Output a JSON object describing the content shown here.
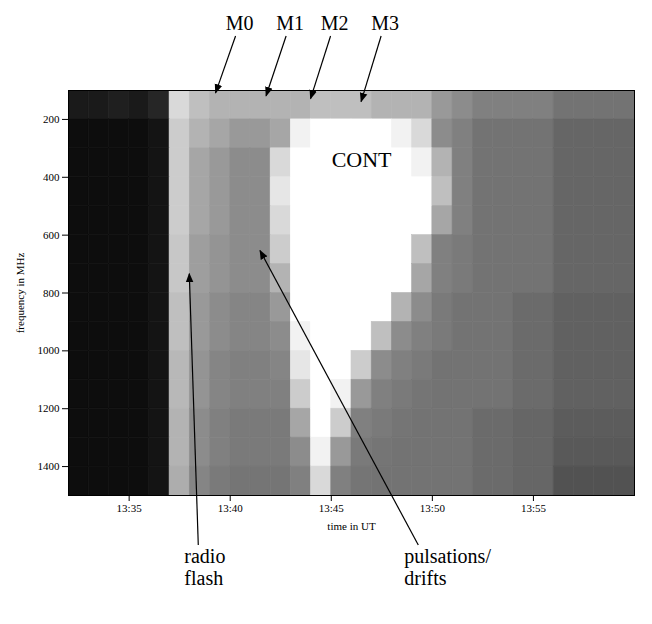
{
  "chart_data": {
    "type": "heatmap",
    "x_label": "time in UT",
    "y_label": "frequency in MHz",
    "xlim": [
      812,
      840
    ],
    "ylim": [
      100,
      1500
    ],
    "xticks": [
      {
        "value": 815,
        "label": "13:35"
      },
      {
        "value": 820,
        "label": "13:40"
      },
      {
        "value": 825,
        "label": "13:45"
      },
      {
        "value": 830,
        "label": "13:50"
      },
      {
        "value": 835,
        "label": "13:55"
      }
    ],
    "yticks": [
      200,
      400,
      600,
      800,
      1000,
      1200,
      1400
    ],
    "zlim": [
      0,
      1
    ],
    "x_bins": [
      812,
      813,
      814,
      815,
      816,
      817,
      818,
      819,
      820,
      821,
      822,
      823,
      824,
      825,
      826,
      827,
      828,
      829,
      830,
      831,
      832,
      833,
      834,
      835,
      836,
      837,
      838,
      839,
      840
    ],
    "y_bins": [
      100,
      200,
      300,
      400,
      500,
      600,
      700,
      800,
      900,
      1000,
      1100,
      1200,
      1300,
      1400,
      1500
    ],
    "cells": [
      [
        0.1,
        0.1,
        0.12,
        0.1,
        0.15,
        0.85,
        0.75,
        0.7,
        0.7,
        0.7,
        0.7,
        0.7,
        0.75,
        0.75,
        0.75,
        0.7,
        0.7,
        0.7,
        0.6,
        0.55,
        0.5,
        0.5,
        0.5,
        0.5,
        0.45,
        0.45,
        0.45,
        0.45
      ],
      [
        0.05,
        0.05,
        0.05,
        0.05,
        0.08,
        0.8,
        0.7,
        0.65,
        0.6,
        0.6,
        0.65,
        0.95,
        1,
        1,
        1,
        1,
        0.95,
        0.85,
        0.55,
        0.5,
        0.45,
        0.45,
        0.45,
        0.45,
        0.4,
        0.4,
        0.4,
        0.4
      ],
      [
        0.05,
        0.05,
        0.05,
        0.05,
        0.08,
        0.8,
        0.65,
        0.6,
        0.55,
        0.55,
        0.85,
        1,
        1,
        1,
        1,
        1,
        1,
        0.95,
        0.7,
        0.5,
        0.45,
        0.45,
        0.45,
        0.45,
        0.4,
        0.4,
        0.4,
        0.4
      ],
      [
        0.05,
        0.05,
        0.05,
        0.05,
        0.08,
        0.8,
        0.65,
        0.6,
        0.55,
        0.55,
        0.9,
        1,
        1,
        1,
        1,
        1,
        1,
        1,
        0.75,
        0.5,
        0.45,
        0.45,
        0.45,
        0.45,
        0.4,
        0.4,
        0.4,
        0.4
      ],
      [
        0.05,
        0.05,
        0.05,
        0.05,
        0.08,
        0.8,
        0.65,
        0.6,
        0.55,
        0.55,
        0.85,
        1,
        1,
        1,
        1,
        1,
        1,
        1,
        0.65,
        0.5,
        0.45,
        0.45,
        0.45,
        0.45,
        0.4,
        0.4,
        0.4,
        0.4
      ],
      [
        0.05,
        0.05,
        0.05,
        0.05,
        0.08,
        0.78,
        0.62,
        0.58,
        0.55,
        0.55,
        0.8,
        1,
        1,
        1,
        1,
        1,
        1,
        0.75,
        0.5,
        0.48,
        0.45,
        0.45,
        0.45,
        0.45,
        0.4,
        0.4,
        0.4,
        0.4
      ],
      [
        0.05,
        0.05,
        0.05,
        0.05,
        0.08,
        0.78,
        0.62,
        0.58,
        0.55,
        0.55,
        0.7,
        1,
        1,
        1,
        1,
        1,
        1,
        0.65,
        0.5,
        0.48,
        0.45,
        0.45,
        0.45,
        0.45,
        0.4,
        0.4,
        0.4,
        0.4
      ],
      [
        0.05,
        0.05,
        0.05,
        0.05,
        0.08,
        0.75,
        0.6,
        0.55,
        0.52,
        0.52,
        0.6,
        1,
        1,
        1,
        1,
        1,
        0.7,
        0.55,
        0.48,
        0.45,
        0.45,
        0.45,
        0.42,
        0.42,
        0.38,
        0.38,
        0.38,
        0.38
      ],
      [
        0.05,
        0.05,
        0.05,
        0.05,
        0.08,
        0.75,
        0.6,
        0.55,
        0.52,
        0.52,
        0.55,
        0.95,
        1,
        1,
        1,
        0.75,
        0.55,
        0.5,
        0.48,
        0.45,
        0.45,
        0.45,
        0.42,
        0.42,
        0.38,
        0.38,
        0.38,
        0.38
      ],
      [
        0.05,
        0.05,
        0.05,
        0.05,
        0.08,
        0.72,
        0.58,
        0.52,
        0.5,
        0.5,
        0.52,
        0.9,
        1,
        1,
        0.8,
        0.55,
        0.5,
        0.48,
        0.45,
        0.45,
        0.45,
        0.45,
        0.42,
        0.42,
        0.38,
        0.38,
        0.38,
        0.38
      ],
      [
        0.05,
        0.05,
        0.05,
        0.05,
        0.08,
        0.72,
        0.58,
        0.52,
        0.5,
        0.5,
        0.5,
        0.8,
        1,
        0.95,
        0.6,
        0.5,
        0.48,
        0.46,
        0.45,
        0.45,
        0.45,
        0.45,
        0.42,
        0.42,
        0.38,
        0.38,
        0.38,
        0.38
      ],
      [
        0.05,
        0.05,
        0.05,
        0.05,
        0.08,
        0.7,
        0.55,
        0.5,
        0.48,
        0.48,
        0.48,
        0.65,
        1,
        0.8,
        0.5,
        0.48,
        0.46,
        0.45,
        0.45,
        0.45,
        0.42,
        0.42,
        0.4,
        0.4,
        0.36,
        0.36,
        0.36,
        0.36
      ],
      [
        0.05,
        0.05,
        0.05,
        0.05,
        0.08,
        0.7,
        0.55,
        0.5,
        0.48,
        0.48,
        0.48,
        0.55,
        0.95,
        0.6,
        0.48,
        0.46,
        0.45,
        0.45,
        0.45,
        0.45,
        0.42,
        0.42,
        0.4,
        0.4,
        0.35,
        0.35,
        0.35,
        0.35
      ],
      [
        0.05,
        0.05,
        0.05,
        0.05,
        0.08,
        0.68,
        0.52,
        0.48,
        0.46,
        0.46,
        0.46,
        0.5,
        0.85,
        0.5,
        0.46,
        0.45,
        0.45,
        0.45,
        0.45,
        0.45,
        0.42,
        0.42,
        0.4,
        0.4,
        0.32,
        0.32,
        0.32,
        0.32
      ]
    ],
    "region_label": {
      "text": "CONT",
      "x": 826.5,
      "y": 340
    },
    "annotations": [
      {
        "text": "M0",
        "x": 819.3,
        "y": 110
      },
      {
        "text": "M1",
        "x": 821.8,
        "y": 120
      },
      {
        "text": "M2",
        "x": 824.0,
        "y": 130
      },
      {
        "text": "M3",
        "x": 826.5,
        "y": 140
      },
      {
        "text": "radio flash",
        "x": 818.0,
        "y": 735
      },
      {
        "text": "pulsations/ drifts",
        "x": 821.5,
        "y": 655
      }
    ]
  }
}
